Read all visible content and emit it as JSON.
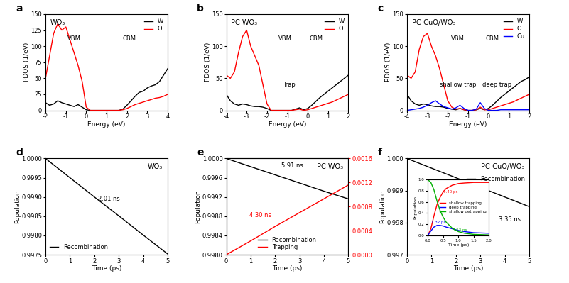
{
  "chart_data": [
    {
      "type": "line",
      "panel": "a",
      "title": "WO₃",
      "x_label": "Energy (eV)",
      "y_label": "PDOS (1/eV)",
      "x": [
        -2,
        -1.8,
        -1.6,
        -1.4,
        -1.2,
        -1.0,
        -0.8,
        -0.6,
        -0.4,
        -0.2,
        0,
        0.2,
        0.4,
        0.6,
        0.8,
        1.0,
        1.2,
        1.4,
        1.6,
        1.8,
        2.0,
        2.2,
        2.4,
        2.6,
        2.8,
        3.0,
        3.2,
        3.4,
        3.6,
        3.8,
        4.0
      ],
      "series": [
        {
          "name": "W",
          "color": "#000000",
          "values": [
            12,
            8,
            10,
            15,
            12,
            10,
            8,
            6,
            9,
            5,
            1,
            0,
            0,
            0,
            0,
            0,
            0,
            0,
            0,
            2,
            8,
            15,
            22,
            28,
            30,
            35,
            38,
            40,
            45,
            55,
            65
          ]
        },
        {
          "name": "O",
          "color": "#ff0000",
          "values": [
            50,
            85,
            120,
            135,
            125,
            130,
            110,
            90,
            70,
            45,
            5,
            0,
            0,
            0,
            0,
            0,
            0,
            0,
            0,
            1,
            3,
            6,
            9,
            11,
            13,
            15,
            17,
            19,
            20,
            22,
            25
          ]
        }
      ],
      "xlim": [
        -2,
        4
      ],
      "xticks": [
        -2,
        -1,
        0,
        1,
        2,
        3,
        4
      ],
      "ylim": [
        0,
        150
      ],
      "yticks": [
        0,
        25,
        50,
        75,
        100,
        125,
        150
      ],
      "legend": "upper right",
      "annotations": [
        {
          "text": "VBM",
          "x": -0.6,
          "y": 112
        },
        {
          "text": "CBM",
          "x": 2.1,
          "y": 112
        }
      ]
    },
    {
      "type": "line",
      "panel": "b",
      "title": "PC-WO₃",
      "x_label": "Energy (eV)",
      "y_label": "PDOS (1/eV)",
      "x": [
        -4,
        -3.8,
        -3.6,
        -3.4,
        -3.2,
        -3.0,
        -2.8,
        -2.6,
        -2.4,
        -2.2,
        -2.0,
        -1.8,
        -1.6,
        -1.4,
        -1.2,
        -1.0,
        -0.8,
        -0.6,
        -0.4,
        -0.2,
        0,
        0.2,
        0.4,
        0.6,
        0.8,
        1.0,
        1.2,
        1.4,
        1.6,
        1.8,
        2.0
      ],
      "series": [
        {
          "name": "W",
          "color": "#000000",
          "values": [
            25,
            15,
            10,
            8,
            10,
            9,
            7,
            6,
            6,
            5,
            3,
            0,
            0,
            0,
            0,
            0,
            0,
            2,
            4,
            1,
            3,
            8,
            14,
            20,
            25,
            30,
            35,
            40,
            45,
            50,
            55
          ]
        },
        {
          "name": "O",
          "color": "#ff0000",
          "values": [
            55,
            50,
            60,
            90,
            115,
            125,
            100,
            85,
            70,
            40,
            10,
            0,
            0,
            0,
            0,
            0,
            0,
            1,
            2,
            0,
            1,
            3,
            5,
            7,
            9,
            11,
            13,
            16,
            19,
            22,
            25
          ]
        }
      ],
      "xlim": [
        -4,
        2
      ],
      "xticks": [
        -4,
        -3,
        -2,
        -1,
        0,
        1,
        2
      ],
      "ylim": [
        0,
        150
      ],
      "yticks": [
        0,
        50,
        100,
        150
      ],
      "legend": "upper right",
      "annotations": [
        {
          "text": "VBM",
          "x": -1.1,
          "y": 112
        },
        {
          "text": "CBM",
          "x": 0.4,
          "y": 112
        },
        {
          "text": "Trap",
          "x": -0.9,
          "y": 40
        }
      ]
    },
    {
      "type": "line",
      "panel": "c",
      "title": "PC-CuO/WO₃",
      "x_label": "Energy (eV)",
      "y_label": "PDOS (1/eV)",
      "x": [
        -4,
        -3.8,
        -3.6,
        -3.4,
        -3.2,
        -3.0,
        -2.8,
        -2.6,
        -2.4,
        -2.2,
        -2.0,
        -1.8,
        -1.6,
        -1.4,
        -1.2,
        -1.0,
        -0.8,
        -0.6,
        -0.4,
        -0.2,
        0,
        0.2,
        0.4,
        0.6,
        0.8,
        1.0,
        1.2,
        1.4,
        1.6,
        1.8,
        2.0
      ],
      "series": [
        {
          "name": "W",
          "color": "#000000",
          "values": [
            25,
            15,
            10,
            8,
            10,
            9,
            7,
            6,
            6,
            5,
            3,
            2,
            1,
            3,
            1,
            0,
            0,
            1,
            3,
            1,
            3,
            8,
            14,
            20,
            25,
            30,
            35,
            40,
            45,
            48,
            52
          ]
        },
        {
          "name": "O",
          "color": "#ff0000",
          "values": [
            55,
            50,
            60,
            95,
            115,
            120,
            100,
            85,
            65,
            40,
            15,
            5,
            2,
            3,
            1,
            0,
            0,
            1,
            5,
            1,
            1,
            3,
            5,
            7,
            9,
            11,
            13,
            16,
            19,
            22,
            25
          ]
        },
        {
          "name": "Cu",
          "color": "#0000ff",
          "values": [
            0,
            1,
            2,
            3,
            5,
            8,
            12,
            15,
            10,
            6,
            4,
            2,
            4,
            8,
            3,
            0,
            0,
            2,
            12,
            3,
            0,
            0,
            0,
            1,
            1,
            1,
            1,
            1,
            1,
            1,
            1
          ]
        }
      ],
      "xlim": [
        -4,
        2
      ],
      "xticks": [
        -4,
        -3,
        -2,
        -1,
        0,
        1,
        2
      ],
      "ylim": [
        0,
        150
      ],
      "yticks": [
        0,
        50,
        100,
        150
      ],
      "legend": "upper right",
      "annotations": [
        {
          "text": "VBM",
          "x": -1.5,
          "y": 112
        },
        {
          "text": "CBM",
          "x": 0.2,
          "y": 112
        },
        {
          "text": "shallow trap",
          "x": -1.5,
          "y": 40
        },
        {
          "text": "deep trap",
          "x": 0.4,
          "y": 40
        }
      ]
    },
    {
      "type": "line",
      "panel": "d",
      "title": "WO₃",
      "x_label": "Time (ps)",
      "y_label": "Population",
      "x": [
        0,
        1,
        2,
        3,
        4,
        5
      ],
      "series": [
        {
          "name": "Recombination",
          "color": "#000000",
          "values": [
            1.0,
            0.9995,
            0.999,
            0.99851,
            0.99801,
            0.99752
          ]
        }
      ],
      "xlim": [
        0,
        5
      ],
      "xticks": [
        0,
        1,
        2,
        3,
        4,
        5
      ],
      "ylim": [
        0.9975,
        1.0
      ],
      "yticks": [
        {
          "value": 0.9975,
          "label": "0.9975"
        },
        {
          "value": 0.998,
          "label": "0.9980"
        },
        {
          "value": 0.9985,
          "label": "0.9985"
        },
        {
          "value": 0.999,
          "label": "0.9990"
        },
        {
          "value": 0.9995,
          "label": "0.9995"
        },
        {
          "value": 1.0,
          "label": "1.0000"
        }
      ],
      "legend": "lower left",
      "annotations": [
        {
          "text": "2.01 ns",
          "x": 2.6,
          "y": 0.99895
        }
      ]
    },
    {
      "type": "line",
      "panel": "e",
      "title": "PC-WO₃",
      "x_label": "Time (ps)",
      "y_label": "Population",
      "x": [
        0,
        1,
        2,
        3,
        4,
        5
      ],
      "series": [
        {
          "name": "Recombination",
          "color": "#000000",
          "values": [
            1.0,
            0.99983,
            0.99966,
            0.99949,
            0.99932,
            0.99916
          ]
        },
        {
          "name": "Trapping",
          "color": "#ff0000",
          "axis": "y2",
          "values": [
            0,
            0.00023,
            0.00047,
            0.0007,
            0.00093,
            0.00116
          ]
        }
      ],
      "xlim": [
        0,
        5
      ],
      "xticks": [
        0,
        1,
        2,
        3,
        4,
        5
      ],
      "ylim": [
        0.998,
        1.0
      ],
      "yticks": [
        {
          "value": 0.998,
          "label": "0.9980"
        },
        {
          "value": 0.9984,
          "label": "0.9984"
        },
        {
          "value": 0.9988,
          "label": "0.9988"
        },
        {
          "value": 0.9992,
          "label": "0.9992"
        },
        {
          "value": 0.9996,
          "label": "0.9996"
        },
        {
          "value": 1.0,
          "label": "1.0000"
        }
      ],
      "y2lim": [
        0,
        0.0016
      ],
      "y2ticks": [
        {
          "value": 0,
          "label": "0.0000"
        },
        {
          "value": 0.0004,
          "label": "0.0004"
        },
        {
          "value": 0.0008,
          "label": "0.0008"
        },
        {
          "value": 0.0012,
          "label": "0.0012"
        },
        {
          "value": 0.0016,
          "label": "0.0016"
        }
      ],
      "legend": "lower center",
      "annotations": [
        {
          "text": "5.91 ns",
          "x": 2.7,
          "y": 0.99985
        },
        {
          "text": "4.30 ns",
          "x": 1.4,
          "y": 0.00065,
          "axis": "y2",
          "color": "#ff0000"
        }
      ]
    },
    {
      "type": "line",
      "panel": "f",
      "title": "PC-CuO/WO₃",
      "x_label": "Time (ps)",
      "y_label": "Population",
      "x": [
        0,
        1,
        2,
        3,
        4,
        5
      ],
      "series": [
        {
          "name": "Recombination",
          "color": "#000000",
          "values": [
            1.0,
            0.9997,
            0.9994,
            0.9991,
            0.9988,
            0.9985
          ]
        }
      ],
      "xlim": [
        0,
        5
      ],
      "xticks": [
        0,
        1,
        2,
        3,
        4,
        5
      ],
      "ylim": [
        0.997,
        1.0
      ],
      "yticks": [
        {
          "value": 0.997,
          "label": "0.997"
        },
        {
          "value": 0.998,
          "label": "0.998"
        },
        {
          "value": 0.999,
          "label": "0.999"
        },
        {
          "value": 1.0,
          "label": "1.000"
        }
      ],
      "legend": "upper right",
      "annotations": [
        {
          "text": "3.35 ns",
          "x": 4.2,
          "y": 0.9981
        }
      ]
    },
    {
      "type": "line",
      "x_label": "Time (ps)",
      "y_label": "Population",
      "x": [
        0,
        0.1,
        0.2,
        0.3,
        0.4,
        0.5,
        0.6,
        0.8,
        1.0,
        1.2,
        1.5,
        2.0
      ],
      "series": [
        {
          "name": "shallow trapping",
          "color": "#ff0000",
          "values": [
            0,
            0.12,
            0.35,
            0.55,
            0.68,
            0.78,
            0.84,
            0.9,
            0.93,
            0.94,
            0.95,
            0.95
          ]
        },
        {
          "name": "deep trapping",
          "color": "#0000ff",
          "values": [
            0,
            0.08,
            0.15,
            0.18,
            0.18,
            0.17,
            0.15,
            0.12,
            0.09,
            0.07,
            0.05,
            0.04
          ]
        },
        {
          "name": "shallow detrapping",
          "color": "#00b000",
          "values": [
            1.0,
            0.95,
            0.82,
            0.62,
            0.45,
            0.33,
            0.24,
            0.13,
            0.07,
            0.04,
            0.02,
            0.01
          ]
        }
      ],
      "xlim": [
        0,
        2
      ],
      "xticks": [
        {
          "value": 0,
          "label": "0.0"
        },
        {
          "value": 0.5,
          "label": "0.5"
        },
        {
          "value": 1.0,
          "label": "1.0"
        },
        {
          "value": 1.5,
          "label": "1.5"
        },
        {
          "value": 2.0,
          "label": "2.0"
        }
      ],
      "ylim": [
        0,
        1
      ],
      "yticks": [
        {
          "value": 0,
          "label": "0.0"
        },
        {
          "value": 0.2,
          "label": "0.2"
        },
        {
          "value": 0.4,
          "label": "0.4"
        },
        {
          "value": 0.6,
          "label": "0.6"
        },
        {
          "value": 0.8,
          "label": "0.8"
        },
        {
          "value": 1.0,
          "label": "1.0"
        }
      ],
      "legend": "center right",
      "annotations": [
        {
          "text": "0.40 ps",
          "x": 0.75,
          "y": 0.78,
          "color": "#ff0000"
        },
        {
          "text": "1.32 ps",
          "x": 0.35,
          "y": 0.24,
          "color": "#0000ff"
        },
        {
          "text": "0.53 ps",
          "x": 1.05,
          "y": 0.1,
          "color": "#00b000"
        }
      ]
    }
  ]
}
